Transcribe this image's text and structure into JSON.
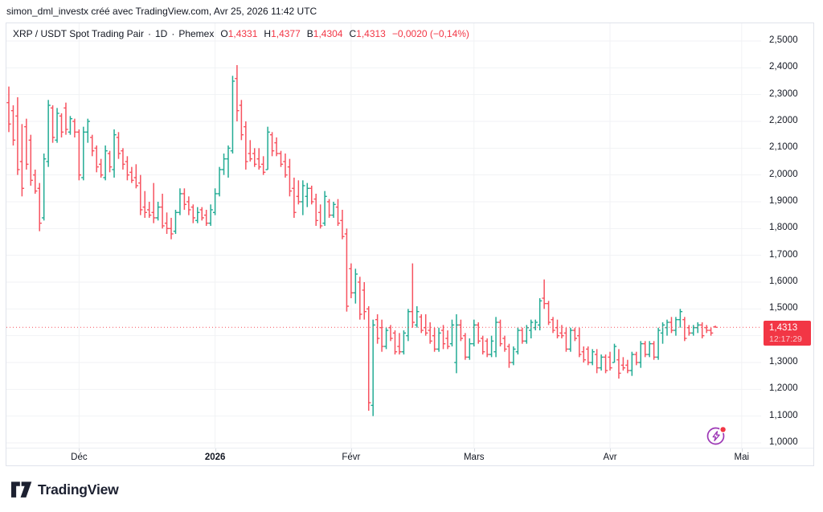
{
  "attribution": "simon_dml_investx créé avec TradingView.com, Avr 25, 2026 11:42 UTC",
  "legend": {
    "symbol_title": "XRP / USDT Spot Trading Pair",
    "separator": "·",
    "interval": "1D",
    "exchange": "Phemex",
    "ohlc": {
      "open_label": "O",
      "open": "1,4331",
      "high_label": "H",
      "high": "1,4377",
      "low_label": "B",
      "low": "1,4304",
      "close_label": "C",
      "close": "1,4313"
    },
    "change": "−0,0020 (−0,14%)"
  },
  "price_axis": {
    "labels": [
      {
        "text": "2,5000",
        "price": 2.5
      },
      {
        "text": "2,4000",
        "price": 2.4
      },
      {
        "text": "2,3000",
        "price": 2.3
      },
      {
        "text": "2,2000",
        "price": 2.2
      },
      {
        "text": "2,1000",
        "price": 2.1
      },
      {
        "text": "2,0000",
        "price": 2.0
      },
      {
        "text": "1,9000",
        "price": 1.9
      },
      {
        "text": "1,8000",
        "price": 1.8
      },
      {
        "text": "1,7000",
        "price": 1.7
      },
      {
        "text": "1,6000",
        "price": 1.6
      },
      {
        "text": "1,5000",
        "price": 1.5
      },
      {
        "text": "1,3000",
        "price": 1.3
      },
      {
        "text": "1,2000",
        "price": 1.2
      },
      {
        "text": "1,1000",
        "price": 1.1
      },
      {
        "text": "1,0000",
        "price": 1.0
      }
    ],
    "last_price_label": {
      "price_text": "1,4313",
      "countdown": "12:17:29"
    }
  },
  "time_axis": {
    "labels": [
      {
        "text": "Déc",
        "bar_index": 16,
        "bold": false
      },
      {
        "text": "2026",
        "bar_index": 47,
        "bold": true
      },
      {
        "text": "Févr",
        "bar_index": 78,
        "bold": false
      },
      {
        "text": "Mars",
        "bar_index": 106,
        "bold": false
      },
      {
        "text": "Avr",
        "bar_index": 137,
        "bold": false
      },
      {
        "text": "Mai",
        "bar_index": 167,
        "bold": false
      }
    ]
  },
  "footer": {
    "logo_text": "TradingView"
  },
  "colors": {
    "up": "#22ab94",
    "down": "#f7525f",
    "accent_red": "#f23645",
    "text": "#131722",
    "grid": "#f1f2f4",
    "border": "#e0e3eb",
    "flash_purple": "#9c36b5"
  },
  "chart_data": {
    "type": "ohlc-bar",
    "title": "XRP / USDT Spot Trading Pair · 1D · Phemex",
    "y_range": [
      1.0,
      2.5
    ],
    "y_tick_step": 0.1,
    "last_price": 1.4313,
    "legend_position": "top-left",
    "grid": true,
    "bars": [
      [
        2.27,
        2.33,
        2.16,
        2.19
      ],
      [
        2.24,
        2.26,
        2.11,
        2.13
      ],
      [
        2.22,
        2.29,
        2.0,
        2.02
      ],
      [
        2.05,
        2.19,
        1.92,
        1.95
      ],
      [
        2.18,
        2.21,
        2.02,
        2.04
      ],
      [
        2.13,
        2.15,
        1.96,
        1.98
      ],
      [
        2.0,
        2.02,
        1.93,
        1.94
      ],
      [
        1.95,
        1.97,
        1.79,
        1.82
      ],
      [
        1.84,
        2.08,
        1.83,
        2.06
      ],
      [
        2.05,
        2.28,
        2.03,
        2.26
      ],
      [
        2.25,
        2.26,
        2.12,
        2.14
      ],
      [
        2.13,
        2.25,
        2.12,
        2.23
      ],
      [
        2.22,
        2.23,
        2.14,
        2.16
      ],
      [
        2.25,
        2.27,
        2.15,
        2.17
      ],
      [
        2.16,
        2.22,
        2.15,
        2.21
      ],
      [
        2.2,
        2.21,
        2.14,
        2.16
      ],
      [
        2.16,
        2.17,
        1.98,
        2.0
      ],
      [
        1.99,
        2.18,
        1.98,
        2.16
      ],
      [
        2.16,
        2.21,
        2.12,
        2.2
      ],
      [
        2.14,
        2.15,
        2.07,
        2.09
      ],
      [
        2.1,
        2.11,
        2.01,
        2.03
      ],
      [
        2.04,
        2.06,
        1.99,
        2.0
      ],
      [
        1.99,
        2.11,
        1.98,
        2.09
      ],
      [
        2.08,
        2.09,
        2.01,
        2.03
      ],
      [
        2.02,
        2.17,
        1.99,
        2.15
      ],
      [
        2.14,
        2.16,
        2.06,
        2.08
      ],
      [
        2.09,
        2.1,
        2.02,
        2.04
      ],
      [
        2.05,
        2.07,
        1.98,
        2.0
      ],
      [
        2.01,
        2.03,
        1.97,
        1.98
      ],
      [
        1.99,
        2.04,
        1.95,
        1.96
      ],
      [
        1.97,
        2.0,
        1.85,
        1.87
      ],
      [
        1.88,
        1.94,
        1.84,
        1.86
      ],
      [
        1.87,
        1.9,
        1.84,
        1.85
      ],
      [
        1.86,
        1.97,
        1.82,
        1.84
      ],
      [
        1.84,
        1.9,
        1.83,
        1.88
      ],
      [
        1.88,
        1.93,
        1.8,
        1.81
      ],
      [
        1.82,
        1.86,
        1.78,
        1.8
      ],
      [
        1.8,
        1.84,
        1.76,
        1.78
      ],
      [
        1.79,
        1.87,
        1.78,
        1.86
      ],
      [
        1.86,
        1.95,
        1.85,
        1.93
      ],
      [
        1.93,
        1.95,
        1.87,
        1.89
      ],
      [
        1.9,
        1.92,
        1.85,
        1.87
      ],
      [
        1.88,
        1.89,
        1.82,
        1.84
      ],
      [
        1.83,
        1.88,
        1.82,
        1.86
      ],
      [
        1.87,
        1.88,
        1.83,
        1.84
      ],
      [
        1.85,
        1.87,
        1.81,
        1.82
      ],
      [
        1.82,
        1.89,
        1.81,
        1.87
      ],
      [
        1.86,
        1.95,
        1.85,
        1.93
      ],
      [
        1.93,
        2.03,
        1.92,
        2.02
      ],
      [
        2.02,
        2.08,
        2.0,
        2.06
      ],
      [
        2.06,
        2.11,
        1.99,
        2.1
      ],
      [
        2.09,
        2.37,
        2.08,
        2.35
      ],
      [
        2.36,
        2.41,
        2.2,
        2.24
      ],
      [
        2.26,
        2.28,
        2.13,
        2.15
      ],
      [
        2.18,
        2.2,
        2.02,
        2.05
      ],
      [
        2.08,
        2.13,
        2.05,
        2.06
      ],
      [
        2.08,
        2.1,
        2.03,
        2.04
      ],
      [
        2.06,
        2.1,
        2.02,
        2.03
      ],
      [
        2.04,
        2.07,
        2.0,
        2.01
      ],
      [
        2.02,
        2.18,
        2.02,
        2.16
      ],
      [
        2.15,
        2.16,
        2.07,
        2.09
      ],
      [
        2.12,
        2.14,
        2.07,
        2.08
      ],
      [
        2.08,
        2.09,
        2.03,
        2.04
      ],
      [
        2.05,
        2.08,
        1.99,
        2.0
      ],
      [
        2.03,
        2.06,
        1.92,
        1.94
      ],
      [
        1.95,
        1.99,
        1.84,
        1.86
      ],
      [
        1.92,
        1.98,
        1.89,
        1.9
      ],
      [
        1.9,
        1.98,
        1.85,
        1.96
      ],
      [
        1.92,
        1.97,
        1.88,
        1.95
      ],
      [
        1.95,
        1.96,
        1.89,
        1.9
      ],
      [
        1.91,
        1.93,
        1.81,
        1.83
      ],
      [
        1.86,
        1.89,
        1.8,
        1.81
      ],
      [
        1.82,
        1.94,
        1.81,
        1.92
      ],
      [
        1.9,
        1.91,
        1.84,
        1.85
      ],
      [
        1.85,
        1.9,
        1.84,
        1.89
      ],
      [
        1.88,
        1.91,
        1.81,
        1.82
      ],
      [
        1.83,
        1.87,
        1.76,
        1.77
      ],
      [
        1.78,
        1.8,
        1.49,
        1.51
      ],
      [
        1.65,
        1.67,
        1.54,
        1.56
      ],
      [
        1.56,
        1.65,
        1.52,
        1.63
      ],
      [
        1.6,
        1.62,
        1.46,
        1.48
      ],
      [
        1.57,
        1.6,
        1.46,
        1.49
      ],
      [
        1.5,
        1.51,
        1.12,
        1.15
      ],
      [
        1.14,
        1.46,
        1.1,
        1.44
      ],
      [
        1.46,
        1.48,
        1.37,
        1.39
      ],
      [
        1.43,
        1.46,
        1.34,
        1.36
      ],
      [
        1.36,
        1.43,
        1.35,
        1.42
      ],
      [
        1.43,
        1.44,
        1.38,
        1.39
      ],
      [
        1.41,
        1.42,
        1.33,
        1.34
      ],
      [
        1.36,
        1.41,
        1.33,
        1.34
      ],
      [
        1.34,
        1.42,
        1.33,
        1.41
      ],
      [
        1.4,
        1.5,
        1.38,
        1.49
      ],
      [
        1.49,
        1.67,
        1.43,
        1.45
      ],
      [
        1.44,
        1.51,
        1.43,
        1.49
      ],
      [
        1.47,
        1.48,
        1.41,
        1.42
      ],
      [
        1.43,
        1.48,
        1.4,
        1.41
      ],
      [
        1.42,
        1.45,
        1.37,
        1.38
      ],
      [
        1.4,
        1.43,
        1.34,
        1.35
      ],
      [
        1.35,
        1.43,
        1.34,
        1.41
      ],
      [
        1.42,
        1.44,
        1.35,
        1.37
      ],
      [
        1.39,
        1.42,
        1.35,
        1.36
      ],
      [
        1.37,
        1.46,
        1.36,
        1.44
      ],
      [
        1.3,
        1.48,
        1.26,
        1.44
      ],
      [
        1.44,
        1.46,
        1.38,
        1.39
      ],
      [
        1.4,
        1.41,
        1.31,
        1.32
      ],
      [
        1.32,
        1.39,
        1.31,
        1.37
      ],
      [
        1.37,
        1.46,
        1.36,
        1.44
      ],
      [
        1.44,
        1.45,
        1.37,
        1.38
      ],
      [
        1.39,
        1.4,
        1.33,
        1.34
      ],
      [
        1.38,
        1.39,
        1.32,
        1.33
      ],
      [
        1.33,
        1.4,
        1.32,
        1.38
      ],
      [
        1.34,
        1.47,
        1.32,
        1.45
      ],
      [
        1.45,
        1.46,
        1.36,
        1.37
      ],
      [
        1.39,
        1.4,
        1.34,
        1.35
      ],
      [
        1.36,
        1.37,
        1.28,
        1.3
      ],
      [
        1.3,
        1.36,
        1.29,
        1.35
      ],
      [
        1.34,
        1.43,
        1.33,
        1.42
      ],
      [
        1.42,
        1.43,
        1.37,
        1.38
      ],
      [
        1.38,
        1.44,
        1.37,
        1.43
      ],
      [
        1.42,
        1.46,
        1.39,
        1.45
      ],
      [
        1.43,
        1.46,
        1.42,
        1.45
      ],
      [
        1.44,
        1.54,
        1.42,
        1.53
      ],
      [
        1.54,
        1.61,
        1.5,
        1.52
      ],
      [
        1.52,
        1.53,
        1.44,
        1.45
      ],
      [
        1.46,
        1.47,
        1.41,
        1.42
      ],
      [
        1.43,
        1.46,
        1.39,
        1.4
      ],
      [
        1.41,
        1.44,
        1.39,
        1.4
      ],
      [
        1.41,
        1.43,
        1.34,
        1.35
      ],
      [
        1.35,
        1.43,
        1.34,
        1.42
      ],
      [
        1.42,
        1.43,
        1.38,
        1.39
      ],
      [
        1.4,
        1.43,
        1.32,
        1.33
      ],
      [
        1.34,
        1.36,
        1.3,
        1.31
      ],
      [
        1.35,
        1.36,
        1.29,
        1.3
      ],
      [
        1.3,
        1.35,
        1.29,
        1.34
      ],
      [
        1.33,
        1.35,
        1.26,
        1.28
      ],
      [
        1.28,
        1.33,
        1.27,
        1.32
      ],
      [
        1.32,
        1.33,
        1.26,
        1.27
      ],
      [
        1.32,
        1.34,
        1.27,
        1.28
      ],
      [
        1.3,
        1.37,
        1.3,
        1.36
      ],
      [
        1.31,
        1.35,
        1.24,
        1.26
      ],
      [
        1.29,
        1.32,
        1.27,
        1.28
      ],
      [
        1.29,
        1.31,
        1.26,
        1.27
      ],
      [
        1.27,
        1.34,
        1.25,
        1.33
      ],
      [
        1.33,
        1.34,
        1.29,
        1.3
      ],
      [
        1.3,
        1.38,
        1.28,
        1.37
      ],
      [
        1.37,
        1.38,
        1.32,
        1.33
      ],
      [
        1.33,
        1.38,
        1.32,
        1.37
      ],
      [
        1.37,
        1.38,
        1.31,
        1.32
      ],
      [
        1.32,
        1.43,
        1.31,
        1.42
      ],
      [
        1.41,
        1.45,
        1.37,
        1.44
      ],
      [
        1.43,
        1.46,
        1.4,
        1.45
      ],
      [
        1.45,
        1.47,
        1.41,
        1.42
      ],
      [
        1.42,
        1.47,
        1.4,
        1.46
      ],
      [
        1.46,
        1.5,
        1.43,
        1.49
      ],
      [
        1.46,
        1.47,
        1.38,
        1.39
      ],
      [
        1.43,
        1.44,
        1.4,
        1.41
      ],
      [
        1.41,
        1.44,
        1.4,
        1.43
      ],
      [
        1.43,
        1.45,
        1.41,
        1.44
      ],
      [
        1.44,
        1.45,
        1.39,
        1.4
      ],
      [
        1.43,
        1.44,
        1.41,
        1.42
      ],
      [
        1.42,
        1.43,
        1.4,
        1.41
      ],
      [
        1.4331,
        1.4377,
        1.4304,
        1.4313
      ]
    ]
  }
}
